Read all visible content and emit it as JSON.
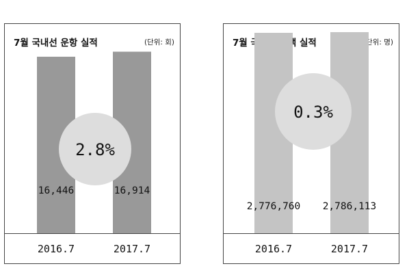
{
  "chart_data": [
    {
      "type": "bar",
      "title": "7월 국내선 운항 실적",
      "unit": "(단위: 회)",
      "categories": [
        "2016.7",
        "2017.7"
      ],
      "values": [
        16446,
        16914
      ],
      "value_labels": [
        "16,446",
        "16,914"
      ],
      "growth_label": "2.8%",
      "ylim": [
        0,
        19500
      ],
      "colors": {
        "bar": "#999999",
        "bubble": "#dddddd"
      },
      "grid": false,
      "legend": false
    },
    {
      "type": "bar",
      "title": "7월 국내선 여객 실적",
      "unit": "(단위: 명)",
      "categories": [
        "2016.7",
        "2017.7"
      ],
      "values": [
        2776760,
        2786113
      ],
      "value_labels": [
        "2,776,760",
        "2,786,113"
      ],
      "growth_label": "0.3%",
      "ylim": [
        0,
        2900000
      ],
      "colors": {
        "bar": "#c4c4c4",
        "bubble": "#dddddd"
      },
      "grid": false,
      "legend": false
    }
  ]
}
